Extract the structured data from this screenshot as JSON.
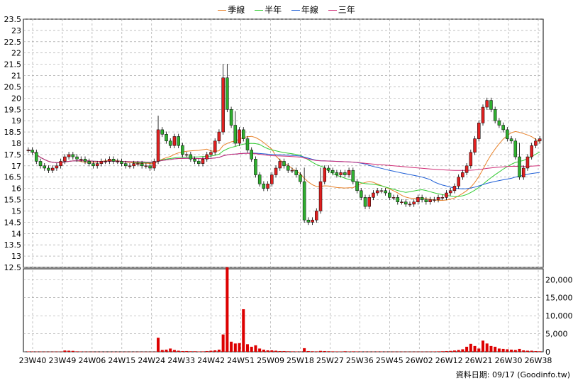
{
  "legend": [
    {
      "label": "季線",
      "color": "#e8822a"
    },
    {
      "label": "半年",
      "color": "#33cc33"
    },
    {
      "label": "年線",
      "color": "#1f5fd6"
    },
    {
      "label": "三年",
      "color": "#d02d76"
    }
  ],
  "footnote": "資料日期: 09/17  (Goodinfo.tw)",
  "colors": {
    "up": "#e02020",
    "down": "#30b030",
    "volume": "#dd0000",
    "grid": "#999999"
  },
  "chart_data": {
    "type": "candlestick",
    "xaxis_ticks": [
      "23W40",
      "23W49",
      "24W06",
      "24W15",
      "24W24",
      "24W33",
      "24W42",
      "24W51",
      "25W09",
      "25W18",
      "25W27",
      "25W36",
      "25W45",
      "26W02",
      "26W12",
      "26W21",
      "26W30",
      "26W38"
    ],
    "price_axis": {
      "ylim": [
        12.5,
        23.5
      ],
      "ticks": [
        "23.5",
        "23",
        "22.5",
        "22",
        "21.5",
        "21",
        "20.5",
        "20",
        "19.5",
        "19",
        "18.5",
        "18",
        "17.5",
        "17",
        "16.5",
        "16",
        "15.5",
        "15",
        "14.5",
        "14",
        "13.5",
        "13",
        "12.5"
      ]
    },
    "volume_axis": {
      "ylim": [
        0,
        23000
      ],
      "ticks": [
        "20,000",
        "15,000",
        "10,000",
        "5,000",
        "0"
      ]
    },
    "closes": [
      17.7,
      17.6,
      17.2,
      17.0,
      16.9,
      16.8,
      16.9,
      17.0,
      17.2,
      17.4,
      17.5,
      17.4,
      17.3,
      17.3,
      17.2,
      17.1,
      17.0,
      17.1,
      17.2,
      17.2,
      17.3,
      17.2,
      17.2,
      17.1,
      17.0,
      17.0,
      17.1,
      17.1,
      17.0,
      17.0,
      16.9,
      17.2,
      18.6,
      18.4,
      18.1,
      17.9,
      18.3,
      17.9,
      17.5,
      17.5,
      17.3,
      17.2,
      17.1,
      17.3,
      17.5,
      17.6,
      18.1,
      18.5,
      20.9,
      19.5,
      18.8,
      18.0,
      18.6,
      18.2,
      17.7,
      17.3,
      16.6,
      16.2,
      16.0,
      16.2,
      16.6,
      16.9,
      17.2,
      17.0,
      16.8,
      16.8,
      16.6,
      16.3,
      14.6,
      14.5,
      14.6,
      15.0,
      16.3,
      16.9,
      16.8,
      16.7,
      16.6,
      16.7,
      16.6,
      16.8,
      16.3,
      15.9,
      15.6,
      15.2,
      15.6,
      15.8,
      15.9,
      15.9,
      15.8,
      15.6,
      15.6,
      15.4,
      15.4,
      15.3,
      15.3,
      15.4,
      15.6,
      15.5,
      15.4,
      15.5,
      15.5,
      15.6,
      15.6,
      15.8,
      15.9,
      16.1,
      16.5,
      16.7,
      17.0,
      17.6,
      18.2,
      18.9,
      19.6,
      19.9,
      19.5,
      19.0,
      18.8,
      18.6,
      18.2,
      18.1,
      17.4,
      16.5,
      16.9,
      17.4,
      17.9,
      18.1,
      18.2
    ],
    "volumes": [
      100,
      80,
      60,
      60,
      50,
      40,
      40,
      60,
      80,
      350,
      300,
      250,
      120,
      80,
      60,
      40,
      40,
      30,
      30,
      30,
      20,
      20,
      20,
      20,
      30,
      40,
      20,
      30,
      20,
      30,
      30,
      30,
      3900,
      500,
      600,
      900,
      500,
      300,
      200,
      200,
      150,
      150,
      100,
      120,
      200,
      300,
      400,
      600,
      4800,
      23400,
      2800,
      2300,
      2400,
      11800,
      2100,
      1400,
      1800,
      900,
      600,
      400,
      400,
      300,
      200,
      200,
      150,
      120,
      100,
      80,
      1000,
      200,
      150,
      120,
      250,
      200,
      150,
      120,
      100,
      100,
      150,
      100,
      120,
      100,
      80,
      70,
      60,
      60,
      80,
      70,
      60,
      50,
      50,
      60,
      60,
      50,
      50,
      40,
      50,
      60,
      50,
      80,
      100,
      120,
      150,
      200,
      250,
      350,
      500,
      700,
      1400,
      2200,
      1600,
      900,
      3100,
      2300,
      1600,
      1400,
      900,
      800,
      700,
      600,
      500,
      800,
      400,
      300,
      300,
      200,
      150
    ]
  }
}
